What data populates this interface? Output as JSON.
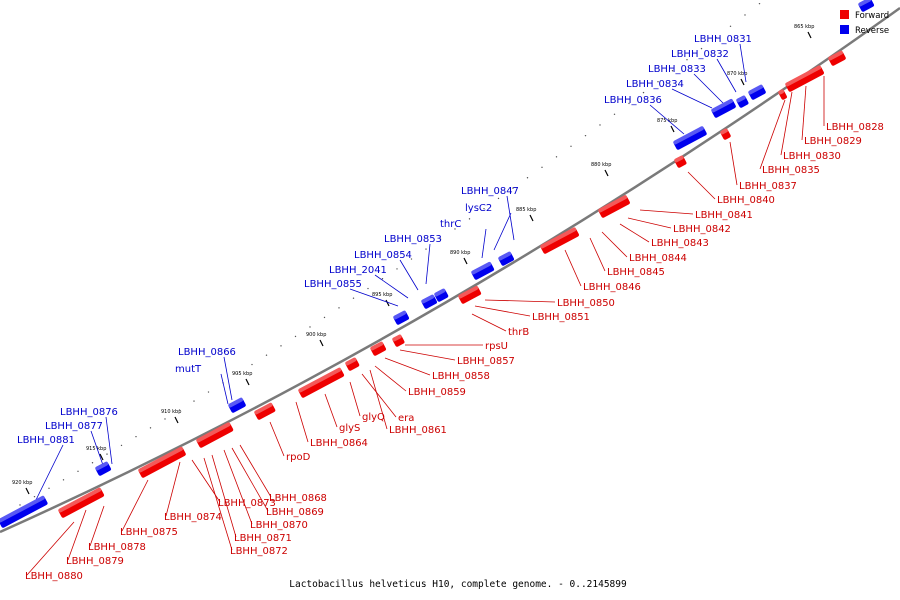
{
  "caption": "Lactobacillus helveticus H10, complete genome. - 0..2145899",
  "legend": {
    "forward": "Forward",
    "reverse": "Reverse",
    "forward_color": "#ee0000",
    "reverse_color": "#0000ee"
  },
  "axis_labels": [
    "865 kbp",
    "870 kbp",
    "875 kbp",
    "880 kbp",
    "885 kbp",
    "890 kbp",
    "895 kbp",
    "900 kbp",
    "905 kbp",
    "910 kbp",
    "915 kbp",
    "920 kbp"
  ],
  "forward_genes": [
    "LBHH_0828",
    "LBHH_0829",
    "LBHH_0830",
    "LBHH_0835",
    "LBHH_0837",
    "LBHH_0840",
    "LBHH_0841",
    "LBHH_0842",
    "LBHH_0843",
    "LBHH_0844",
    "LBHH_0845",
    "LBHH_0846",
    "LBHH_0850",
    "LBHH_0851",
    "thrB",
    "rpsU",
    "LBHH_0857",
    "LBHH_0858",
    "LBHH_0859",
    "LBHH_0861",
    "era",
    "glyQ",
    "glyS",
    "LBHH_0864",
    "rpoD",
    "LBHH_0868",
    "LBHH_0869",
    "LBHH_0870",
    "LBHH_0871",
    "LBHH_0872",
    "LBHH_0873",
    "LBHH_0874",
    "LBHH_0875",
    "LBHH_0878",
    "LBHH_0879",
    "LBHH_0880"
  ],
  "reverse_genes": [
    "LBHH_0831",
    "LBHH_0832",
    "LBHH_0833",
    "LBHH_0834",
    "LBHH_0836",
    "LBHH_0847",
    "lysC2",
    "thrC",
    "LBHH_0853",
    "LBHH_0854",
    "LBHH_2041",
    "LBHH_0855",
    "LBHH_0866",
    "mutT",
    "LBHH_0876",
    "LBHH_0877",
    "LBHH_0881"
  ]
}
